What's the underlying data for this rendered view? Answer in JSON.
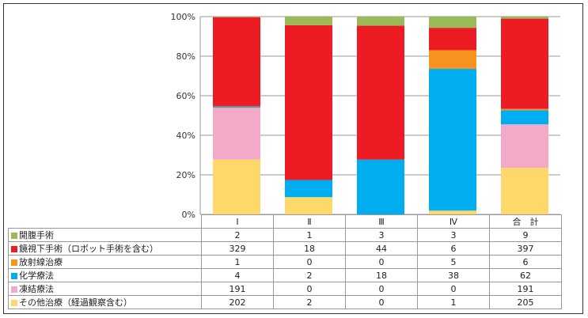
{
  "chart_data": {
    "type": "bar",
    "stacked": "percent",
    "categories": [
      "Ⅰ",
      "Ⅱ",
      "Ⅲ",
      "Ⅳ",
      "合　計"
    ],
    "ylim": [
      0,
      100
    ],
    "yticks": [
      "0%",
      "20%",
      "40%",
      "60%",
      "80%",
      "100%"
    ],
    "grid": true,
    "series": [
      {
        "name": "開腹手術",
        "color": "#9bbb59",
        "values": [
          2,
          1,
          3,
          3,
          9
        ]
      },
      {
        "name": "鏡視下手術（ロボット手術を含む）",
        "color": "#ed1c24",
        "values": [
          329,
          18,
          44,
          6,
          397
        ]
      },
      {
        "name": "放射線治療",
        "color": "#f7941d",
        "values": [
          1,
          0,
          0,
          5,
          6
        ]
      },
      {
        "name": "化学療法",
        "color": "#00aeef",
        "values": [
          4,
          2,
          18,
          38,
          62
        ]
      },
      {
        "name": "凍結療法",
        "color": "#f4a9c8",
        "values": [
          191,
          0,
          0,
          0,
          191
        ]
      },
      {
        "name": "その他治療（経過観察含む）",
        "color": "#ffd86b",
        "values": [
          202,
          2,
          0,
          1,
          205
        ]
      }
    ],
    "stack_order_bottom_up": [
      5,
      4,
      3,
      2,
      1,
      0
    ]
  }
}
